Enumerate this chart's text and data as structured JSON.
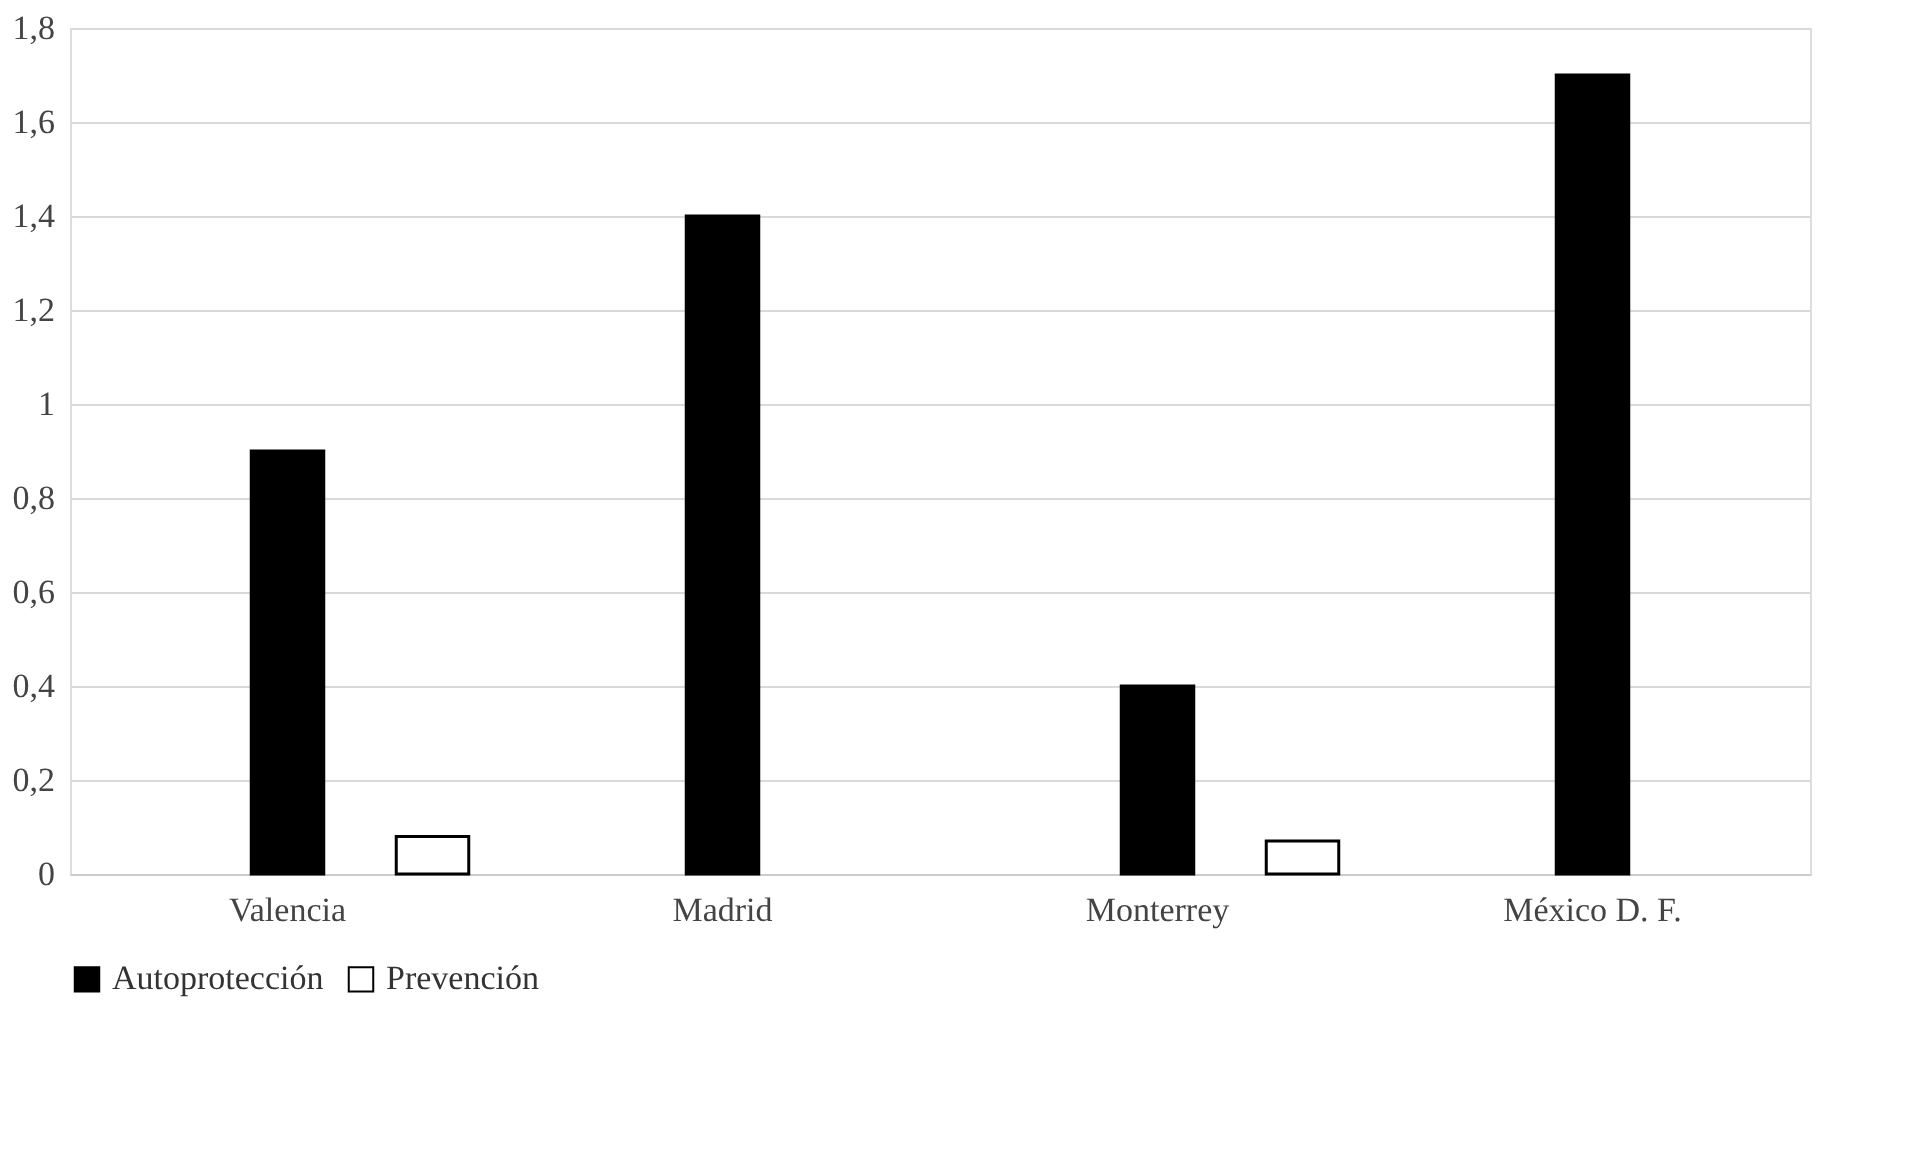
{
  "chart_data": {
    "type": "bar",
    "categories": [
      "Valencia",
      "Madrid",
      "Monterrey",
      "México D. F."
    ],
    "series": [
      {
        "name": "Autoprotección",
        "color": "#000000",
        "values": [
          0.9,
          1.4,
          0.4,
          1.7
        ]
      },
      {
        "name": "Prevención",
        "color": "#ffffff",
        "values": [
          0.08,
          null,
          0.07,
          null
        ]
      }
    ],
    "ylim": [
      0,
      1.8
    ],
    "yticks": [
      0,
      {
        "value": 0.2,
        "label": "0,2"
      },
      {
        "value": 0.4,
        "label": "0,4"
      },
      {
        "value": 0.6,
        "label": "0,6"
      },
      {
        "value": 0.8,
        "label": "0,8"
      },
      1,
      {
        "value": 1.2,
        "label": "1,2"
      },
      {
        "value": 1.4,
        "label": "1,4"
      },
      {
        "value": 1.6,
        "label": "1,6"
      },
      {
        "value": 1.8,
        "label": "1,8"
      }
    ],
    "grid": "y",
    "legend": "bottom"
  }
}
